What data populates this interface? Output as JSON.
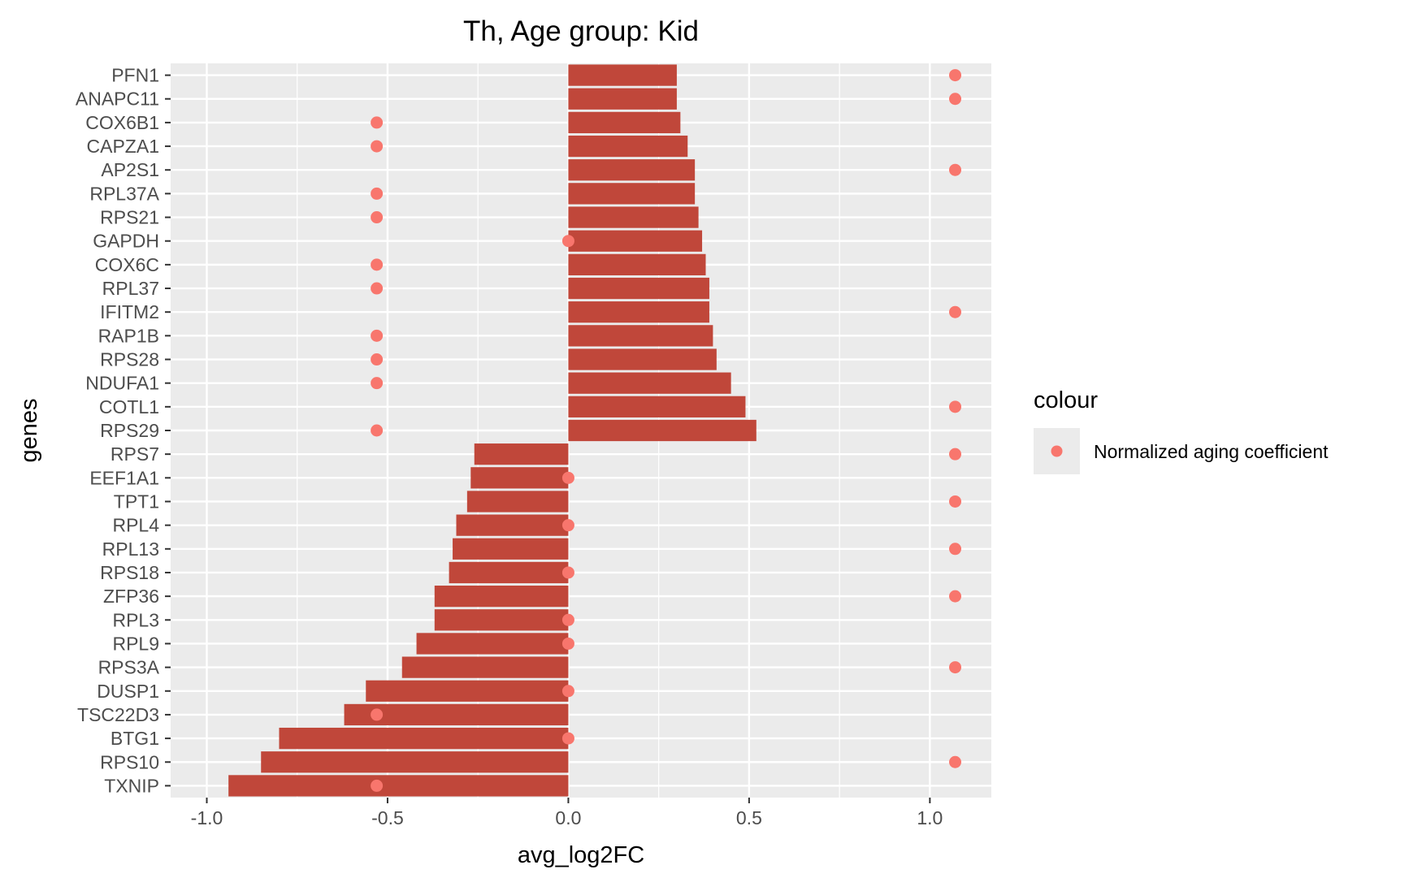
{
  "chart_data": {
    "type": "bar",
    "title": "Th, Age group: Kid",
    "xlabel": "avg_log2FC",
    "ylabel": "genes",
    "xlim": [
      -1.1,
      1.17
    ],
    "x_ticks": [
      "-1.0",
      "-0.5",
      "0.0",
      "0.5",
      "1.0"
    ],
    "x_tick_values": [
      -1.0,
      -0.5,
      0.0,
      0.5,
      1.0
    ],
    "orientation": "horizontal",
    "grid": true,
    "legend_position": "right",
    "legend_title": "colour",
    "categories": [
      "PFN1",
      "ANAPC11",
      "COX6B1",
      "CAPZA1",
      "AP2S1",
      "RPL37A",
      "RPS21",
      "GAPDH",
      "COX6C",
      "RPL37",
      "IFITM2",
      "RAP1B",
      "RPS28",
      "NDUFA1",
      "COTL1",
      "RPS29",
      "RPS7",
      "EEF1A1",
      "TPT1",
      "RPL4",
      "RPL13",
      "RPS18",
      "ZFP36",
      "RPL3",
      "RPL9",
      "RPS3A",
      "DUSP1",
      "TSC22D3",
      "BTG1",
      "RPS10",
      "TXNIP"
    ],
    "values": [
      0.3,
      0.3,
      0.31,
      0.33,
      0.35,
      0.35,
      0.36,
      0.37,
      0.38,
      0.39,
      0.39,
      0.4,
      0.41,
      0.45,
      0.49,
      0.52,
      -0.26,
      -0.27,
      -0.28,
      -0.31,
      -0.32,
      -0.33,
      -0.37,
      -0.37,
      -0.42,
      -0.46,
      -0.56,
      -0.62,
      -0.8,
      -0.85,
      -0.94
    ],
    "series": [
      {
        "name": "Normalized aging coefficient",
        "type": "scatter",
        "values": [
          1.07,
          1.07,
          -0.53,
          -0.53,
          1.07,
          -0.53,
          -0.53,
          0.0,
          -0.53,
          -0.53,
          1.07,
          -0.53,
          -0.53,
          -0.53,
          1.07,
          -0.53,
          1.07,
          0.0,
          1.07,
          0.0,
          1.07,
          0.0,
          1.07,
          0.0,
          0.0,
          1.07,
          0.0,
          -0.53,
          0.0,
          1.07,
          -0.53
        ]
      }
    ],
    "colors": {
      "bar": "#c0473a",
      "point": "#f8766d",
      "panel": "#ebebeb",
      "grid": "#ffffff",
      "legend_key": "#ebebeb",
      "tick": "#333333"
    }
  }
}
